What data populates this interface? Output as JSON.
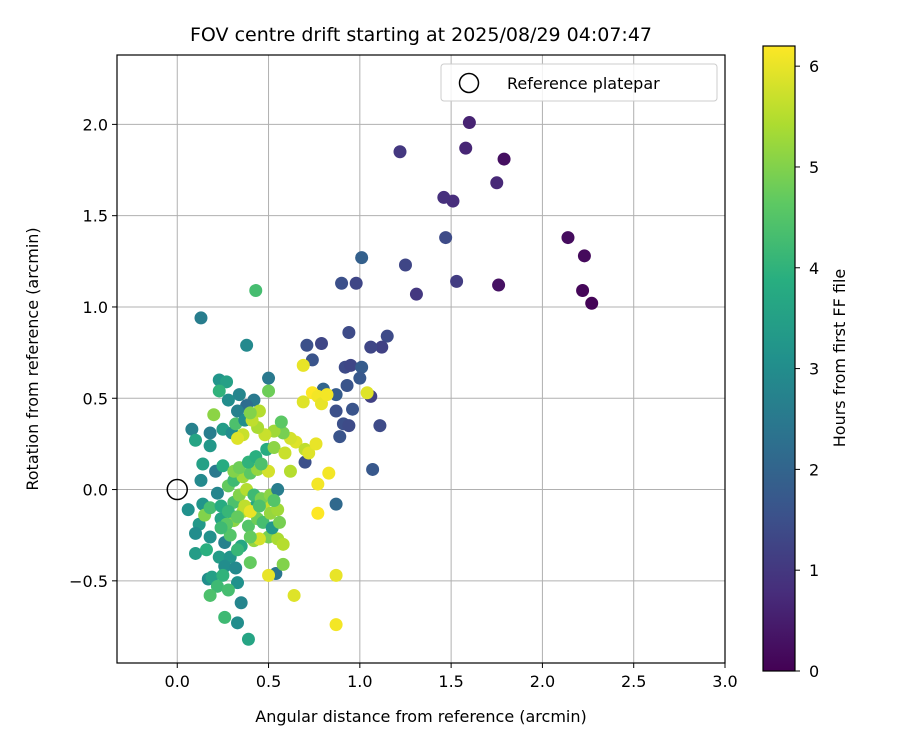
{
  "chart_data": {
    "type": "scatter",
    "title": "FOV centre drift starting at 2025/08/29 04:07:47",
    "xlabel": "Angular distance from reference (arcmin)",
    "ylabel": "Rotation from reference (arcmin)",
    "xlim": [
      -0.33,
      3.0
    ],
    "ylim": [
      -0.95,
      2.38
    ],
    "xticks": [
      0.0,
      0.5,
      1.0,
      1.5,
      2.0,
      2.5,
      3.0
    ],
    "xtick_labels": [
      "0.0",
      "0.5",
      "1.0",
      "1.5",
      "2.0",
      "2.5",
      "3.0"
    ],
    "yticks": [
      -0.5,
      0.0,
      0.5,
      1.0,
      1.5,
      2.0
    ],
    "ytick_labels": [
      "−0.5",
      "0.0",
      "0.5",
      "1.0",
      "1.5",
      "2.0"
    ],
    "grid": true,
    "legend": {
      "position": "top-right",
      "entries": [
        "Reference platepar"
      ]
    },
    "reference_point": {
      "x": 0.0,
      "y": 0.0
    },
    "colorbar": {
      "label": "Hours from first FF file",
      "range": [
        0,
        6.2
      ],
      "ticks": [
        0,
        1,
        2,
        3,
        4,
        5,
        6
      ],
      "tick_labels": [
        "0",
        "1",
        "2",
        "3",
        "4",
        "5",
        "6"
      ],
      "colormap": "viridis"
    },
    "points": [
      {
        "x": 2.27,
        "y": 1.02,
        "h": 0.05
      },
      {
        "x": 2.22,
        "y": 1.09,
        "h": 0.1
      },
      {
        "x": 2.23,
        "y": 1.28,
        "h": 0.15
      },
      {
        "x": 2.14,
        "y": 1.38,
        "h": 0.2
      },
      {
        "x": 1.79,
        "y": 1.81,
        "h": 0.25
      },
      {
        "x": 1.76,
        "y": 1.12,
        "h": 0.3
      },
      {
        "x": 1.6,
        "y": 2.01,
        "h": 0.6
      },
      {
        "x": 1.58,
        "y": 1.87,
        "h": 0.65
      },
      {
        "x": 1.75,
        "y": 1.68,
        "h": 0.7
      },
      {
        "x": 1.51,
        "y": 1.58,
        "h": 0.8
      },
      {
        "x": 1.46,
        "y": 1.6,
        "h": 0.85
      },
      {
        "x": 1.53,
        "y": 1.14,
        "h": 1.1
      },
      {
        "x": 1.22,
        "y": 1.85,
        "h": 1.0
      },
      {
        "x": 1.31,
        "y": 1.07,
        "h": 1.0
      },
      {
        "x": 1.47,
        "y": 1.38,
        "h": 1.4
      },
      {
        "x": 1.25,
        "y": 1.23,
        "h": 1.3
      },
      {
        "x": 0.9,
        "y": 1.13,
        "h": 1.5
      },
      {
        "x": 0.98,
        "y": 1.13,
        "h": 1.3
      },
      {
        "x": 1.01,
        "y": 1.27,
        "h": 1.9
      },
      {
        "x": 1.15,
        "y": 0.84,
        "h": 1.4
      },
      {
        "x": 1.12,
        "y": 0.78,
        "h": 1.2
      },
      {
        "x": 1.06,
        "y": 0.78,
        "h": 1.3
      },
      {
        "x": 0.94,
        "y": 0.86,
        "h": 1.4
      },
      {
        "x": 0.79,
        "y": 0.8,
        "h": 1.3
      },
      {
        "x": 0.71,
        "y": 0.79,
        "h": 1.5
      },
      {
        "x": 0.74,
        "y": 0.71,
        "h": 1.6
      },
      {
        "x": 0.92,
        "y": 0.67,
        "h": 1.4
      },
      {
        "x": 0.95,
        "y": 0.68,
        "h": 1.3
      },
      {
        "x": 1.01,
        "y": 0.67,
        "h": 1.8
      },
      {
        "x": 1.0,
        "y": 0.61,
        "h": 1.7
      },
      {
        "x": 0.93,
        "y": 0.57,
        "h": 1.6
      },
      {
        "x": 0.8,
        "y": 0.55,
        "h": 2.0
      },
      {
        "x": 0.87,
        "y": 0.52,
        "h": 1.8
      },
      {
        "x": 1.06,
        "y": 0.51,
        "h": 1.2
      },
      {
        "x": 0.96,
        "y": 0.44,
        "h": 1.6
      },
      {
        "x": 0.87,
        "y": 0.43,
        "h": 1.5
      },
      {
        "x": 0.91,
        "y": 0.36,
        "h": 1.5
      },
      {
        "x": 0.94,
        "y": 0.35,
        "h": 1.4
      },
      {
        "x": 1.11,
        "y": 0.35,
        "h": 1.4
      },
      {
        "x": 0.89,
        "y": 0.29,
        "h": 1.6
      },
      {
        "x": 0.7,
        "y": 0.15,
        "h": 1.5
      },
      {
        "x": 1.07,
        "y": 0.11,
        "h": 1.7
      },
      {
        "x": 0.87,
        "y": -0.08,
        "h": 2.1
      },
      {
        "x": 0.5,
        "y": 0.61,
        "h": 2.5
      },
      {
        "x": 0.42,
        "y": 0.49,
        "h": 2.5
      },
      {
        "x": 0.34,
        "y": 0.52,
        "h": 2.8
      },
      {
        "x": 0.38,
        "y": 0.46,
        "h": 2.2
      },
      {
        "x": 0.33,
        "y": 0.43,
        "h": 2.7
      },
      {
        "x": 0.28,
        "y": 0.49,
        "h": 3.0
      },
      {
        "x": 0.13,
        "y": 0.94,
        "h": 2.6
      },
      {
        "x": 0.38,
        "y": 0.79,
        "h": 2.9
      },
      {
        "x": 0.43,
        "y": 1.09,
        "h": 4.3
      },
      {
        "x": 0.23,
        "y": 0.6,
        "h": 3.2
      },
      {
        "x": 0.27,
        "y": 0.59,
        "h": 3.5
      },
      {
        "x": 0.23,
        "y": 0.54,
        "h": 4.0
      },
      {
        "x": 0.08,
        "y": 0.33,
        "h": 2.7
      },
      {
        "x": 0.18,
        "y": 0.31,
        "h": 2.6
      },
      {
        "x": 0.1,
        "y": 0.27,
        "h": 3.6
      },
      {
        "x": 0.18,
        "y": 0.24,
        "h": 3.3
      },
      {
        "x": 0.25,
        "y": 0.33,
        "h": 3.4
      },
      {
        "x": 0.3,
        "y": 0.31,
        "h": 3.0
      },
      {
        "x": 0.32,
        "y": 0.36,
        "h": 4.4
      },
      {
        "x": 0.37,
        "y": 0.38,
        "h": 3.0
      },
      {
        "x": 0.14,
        "y": 0.14,
        "h": 3.5
      },
      {
        "x": 0.21,
        "y": 0.1,
        "h": 2.5
      },
      {
        "x": 0.25,
        "y": 0.13,
        "h": 3.8
      },
      {
        "x": 0.13,
        "y": 0.05,
        "h": 2.9
      },
      {
        "x": 0.06,
        "y": -0.11,
        "h": 3.1
      },
      {
        "x": 0.14,
        "y": -0.08,
        "h": 3.2
      },
      {
        "x": 0.22,
        "y": -0.02,
        "h": 2.8
      },
      {
        "x": 0.12,
        "y": -0.19,
        "h": 3.3
      },
      {
        "x": 0.1,
        "y": -0.24,
        "h": 3.0
      },
      {
        "x": 0.24,
        "y": -0.16,
        "h": 3.6
      },
      {
        "x": 0.18,
        "y": -0.26,
        "h": 3.1
      },
      {
        "x": 0.26,
        "y": -0.29,
        "h": 2.7
      },
      {
        "x": 0.1,
        "y": -0.35,
        "h": 3.4
      },
      {
        "x": 0.16,
        "y": -0.33,
        "h": 3.9
      },
      {
        "x": 0.23,
        "y": -0.37,
        "h": 3.4
      },
      {
        "x": 0.29,
        "y": -0.37,
        "h": 3.2
      },
      {
        "x": 0.26,
        "y": -0.42,
        "h": 3.0
      },
      {
        "x": 0.32,
        "y": -0.43,
        "h": 2.9
      },
      {
        "x": 0.17,
        "y": -0.49,
        "h": 3.0
      },
      {
        "x": 0.19,
        "y": -0.48,
        "h": 3.5
      },
      {
        "x": 0.25,
        "y": -0.47,
        "h": 4.0
      },
      {
        "x": 0.33,
        "y": -0.51,
        "h": 3.1
      },
      {
        "x": 0.22,
        "y": -0.53,
        "h": 4.2
      },
      {
        "x": 0.18,
        "y": -0.58,
        "h": 4.4
      },
      {
        "x": 0.28,
        "y": -0.55,
        "h": 4.3
      },
      {
        "x": 0.35,
        "y": -0.62,
        "h": 2.8
      },
      {
        "x": 0.26,
        "y": -0.7,
        "h": 4.2
      },
      {
        "x": 0.33,
        "y": -0.73,
        "h": 3.0
      },
      {
        "x": 0.39,
        "y": -0.82,
        "h": 3.6
      },
      {
        "x": 0.54,
        "y": -0.46,
        "h": 2.4
      },
      {
        "x": 0.4,
        "y": -0.4,
        "h": 4.7
      },
      {
        "x": 0.35,
        "y": -0.31,
        "h": 3.7
      },
      {
        "x": 0.42,
        "y": -0.28,
        "h": 5.2
      },
      {
        "x": 0.5,
        "y": -0.26,
        "h": 4.9
      },
      {
        "x": 0.55,
        "y": -0.27,
        "h": 5.4
      },
      {
        "x": 0.58,
        "y": -0.3,
        "h": 5.5
      },
      {
        "x": 0.45,
        "y": -0.27,
        "h": 5.8
      },
      {
        "x": 0.5,
        "y": -0.47,
        "h": 6.0
      },
      {
        "x": 0.58,
        "y": -0.41,
        "h": 5.0
      },
      {
        "x": 0.64,
        "y": -0.58,
        "h": 5.9
      },
      {
        "x": 0.87,
        "y": -0.47,
        "h": 6.0
      },
      {
        "x": 0.87,
        "y": -0.74,
        "h": 6.1
      },
      {
        "x": 0.39,
        "y": -0.2,
        "h": 4.5
      },
      {
        "x": 0.44,
        "y": -0.16,
        "h": 4.8
      },
      {
        "x": 0.47,
        "y": -0.18,
        "h": 4.3
      },
      {
        "x": 0.52,
        "y": -0.21,
        "h": 3.3
      },
      {
        "x": 0.31,
        "y": -0.17,
        "h": 5.1
      },
      {
        "x": 0.27,
        "y": -0.19,
        "h": 4.6
      },
      {
        "x": 0.36,
        "y": -0.12,
        "h": 5.4
      },
      {
        "x": 0.43,
        "y": -0.09,
        "h": 3.7
      },
      {
        "x": 0.48,
        "y": -0.07,
        "h": 5.6
      },
      {
        "x": 0.51,
        "y": -0.13,
        "h": 5.2
      },
      {
        "x": 0.55,
        "y": -0.11,
        "h": 5.3
      },
      {
        "x": 0.31,
        "y": -0.07,
        "h": 4.4
      },
      {
        "x": 0.34,
        "y": -0.03,
        "h": 5.0
      },
      {
        "x": 0.38,
        "y": 0.0,
        "h": 5.5
      },
      {
        "x": 0.42,
        "y": -0.03,
        "h": 4.2
      },
      {
        "x": 0.46,
        "y": -0.05,
        "h": 4.9
      },
      {
        "x": 0.51,
        "y": -0.03,
        "h": 5.1
      },
      {
        "x": 0.55,
        "y": 0.0,
        "h": 2.6
      },
      {
        "x": 0.28,
        "y": 0.02,
        "h": 4.7
      },
      {
        "x": 0.31,
        "y": 0.05,
        "h": 4.2
      },
      {
        "x": 0.36,
        "y": 0.07,
        "h": 5.3
      },
      {
        "x": 0.4,
        "y": 0.09,
        "h": 4.6
      },
      {
        "x": 0.44,
        "y": 0.11,
        "h": 5.2
      },
      {
        "x": 0.5,
        "y": 0.1,
        "h": 5.8
      },
      {
        "x": 0.31,
        "y": 0.1,
        "h": 5.0
      },
      {
        "x": 0.34,
        "y": 0.12,
        "h": 4.8
      },
      {
        "x": 0.39,
        "y": 0.15,
        "h": 4.0
      },
      {
        "x": 0.43,
        "y": 0.18,
        "h": 3.9
      },
      {
        "x": 0.46,
        "y": 0.14,
        "h": 4.4
      },
      {
        "x": 0.49,
        "y": 0.22,
        "h": 3.8
      },
      {
        "x": 0.53,
        "y": 0.23,
        "h": 5.1
      },
      {
        "x": 0.59,
        "y": 0.2,
        "h": 5.7
      },
      {
        "x": 0.62,
        "y": 0.1,
        "h": 5.5
      },
      {
        "x": 0.65,
        "y": 0.26,
        "h": 5.9
      },
      {
        "x": 0.7,
        "y": 0.22,
        "h": 5.6
      },
      {
        "x": 0.72,
        "y": 0.2,
        "h": 5.9
      },
      {
        "x": 0.76,
        "y": 0.25,
        "h": 6.0
      },
      {
        "x": 0.83,
        "y": 0.09,
        "h": 6.1
      },
      {
        "x": 0.77,
        "y": 0.03,
        "h": 6.1
      },
      {
        "x": 0.77,
        "y": -0.13,
        "h": 6.2
      },
      {
        "x": 0.62,
        "y": 0.28,
        "h": 5.8
      },
      {
        "x": 0.58,
        "y": 0.31,
        "h": 4.9
      },
      {
        "x": 0.53,
        "y": 0.32,
        "h": 5.3
      },
      {
        "x": 0.48,
        "y": 0.3,
        "h": 5.7
      },
      {
        "x": 0.44,
        "y": 0.34,
        "h": 5.4
      },
      {
        "x": 0.41,
        "y": 0.38,
        "h": 5.6
      },
      {
        "x": 0.45,
        "y": 0.43,
        "h": 5.5
      },
      {
        "x": 0.4,
        "y": 0.42,
        "h": 5.0
      },
      {
        "x": 0.36,
        "y": 0.3,
        "h": 5.7
      },
      {
        "x": 0.33,
        "y": 0.28,
        "h": 5.9
      },
      {
        "x": 0.57,
        "y": 0.37,
        "h": 4.6
      },
      {
        "x": 0.5,
        "y": 0.54,
        "h": 4.8
      },
      {
        "x": 0.2,
        "y": 0.41,
        "h": 5.1
      },
      {
        "x": 0.69,
        "y": 0.68,
        "h": 6.0
      },
      {
        "x": 0.69,
        "y": 0.48,
        "h": 5.9
      },
      {
        "x": 0.74,
        "y": 0.53,
        "h": 6.2
      },
      {
        "x": 0.77,
        "y": 0.51,
        "h": 6.1
      },
      {
        "x": 0.79,
        "y": 0.47,
        "h": 6.0
      },
      {
        "x": 0.82,
        "y": 0.52,
        "h": 6.1
      },
      {
        "x": 1.04,
        "y": 0.53,
        "h": 5.9
      },
      {
        "x": 0.15,
        "y": -0.14,
        "h": 5.0
      },
      {
        "x": 0.18,
        "y": -0.1,
        "h": 4.3
      },
      {
        "x": 0.24,
        "y": -0.09,
        "h": 3.8
      },
      {
        "x": 0.28,
        "y": -0.12,
        "h": 4.1
      },
      {
        "x": 0.33,
        "y": -0.15,
        "h": 4.7
      },
      {
        "x": 0.37,
        "y": -0.09,
        "h": 5.6
      },
      {
        "x": 0.4,
        "y": -0.12,
        "h": 6.0
      },
      {
        "x": 0.45,
        "y": -0.09,
        "h": 4.4
      },
      {
        "x": 0.53,
        "y": -0.06,
        "h": 4.5
      },
      {
        "x": 0.56,
        "y": -0.18,
        "h": 4.9
      },
      {
        "x": 0.4,
        "y": -0.26,
        "h": 4.7
      },
      {
        "x": 0.33,
        "y": -0.33,
        "h": 4.1
      },
      {
        "x": 0.29,
        "y": -0.25,
        "h": 4.5
      },
      {
        "x": 0.24,
        "y": -0.21,
        "h": 4.2
      }
    ]
  }
}
